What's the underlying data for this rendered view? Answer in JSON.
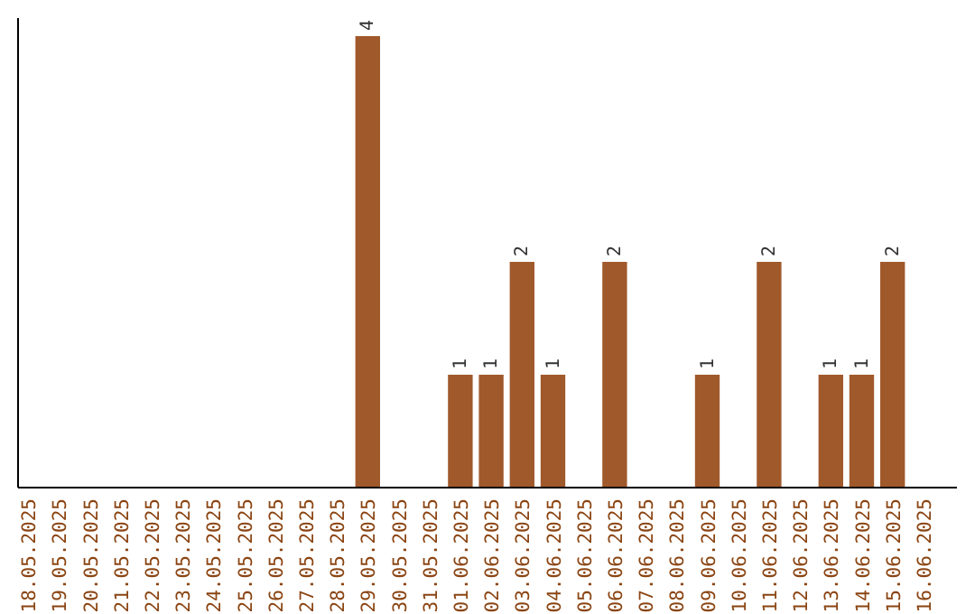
{
  "chart_data": {
    "type": "bar",
    "categories": [
      "18.05.2025",
      "19.05.2025",
      "20.05.2025",
      "21.05.2025",
      "22.05.2025",
      "23.05.2025",
      "24.05.2025",
      "25.05.2025",
      "26.05.2025",
      "27.05.2025",
      "28.05.2025",
      "29.05.2025",
      "30.05.2025",
      "31.05.2025",
      "01.06.2025",
      "02.06.2025",
      "03.06.2025",
      "04.06.2025",
      "05.06.2025",
      "06.06.2025",
      "07.06.2025",
      "08.06.2025",
      "09.06.2025",
      "10.06.2025",
      "11.06.2025",
      "12.06.2025",
      "13.06.2025",
      "14.06.2025",
      "15.06.2025",
      "16.06.2025"
    ],
    "values": [
      0,
      0,
      0,
      0,
      0,
      0,
      0,
      0,
      0,
      0,
      0,
      4,
      0,
      0,
      1,
      1,
      2,
      1,
      0,
      2,
      0,
      0,
      1,
      0,
      2,
      0,
      1,
      1,
      2,
      0
    ],
    "value_labels": [
      null,
      null,
      null,
      null,
      null,
      null,
      null,
      null,
      null,
      null,
      null,
      "4",
      null,
      null,
      "1",
      "1",
      "2",
      "1",
      null,
      "2",
      null,
      null,
      "1",
      null,
      "2",
      null,
      "1",
      "1",
      "2",
      null
    ],
    "color": "#a0592b"
  }
}
